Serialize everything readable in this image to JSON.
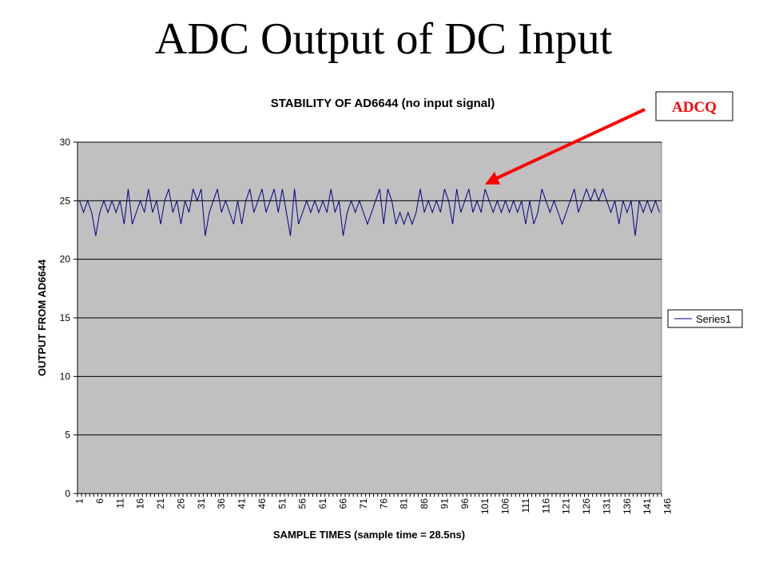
{
  "slide": {
    "title": "ADC Output of DC Input"
  },
  "callout": {
    "label": "ADCQ",
    "color": "#ff0000"
  },
  "colors": {
    "plot_background": "#c0c0c0",
    "series_line": "#000080",
    "gridline": "#000000"
  },
  "chart_data": {
    "type": "line",
    "title": "STABILITY OF AD6644 (no input signal)",
    "xlabel": "SAMPLE TIMES (sample time = 28.5ns)",
    "ylabel": "OUTPUT FROM AD6644",
    "ylim": [
      0,
      30
    ],
    "yticks": [
      0,
      5,
      10,
      15,
      20,
      25,
      30
    ],
    "xticks": [
      1,
      6,
      11,
      16,
      21,
      26,
      31,
      36,
      41,
      46,
      51,
      56,
      61,
      66,
      71,
      76,
      81,
      86,
      91,
      96,
      101,
      106,
      111,
      116,
      121,
      126,
      131,
      136,
      141,
      146
    ],
    "x_start": 1,
    "grid": "horizontal",
    "legend_position": "right",
    "series": [
      {
        "name": "Series1",
        "values": [
          25,
          24,
          25,
          24,
          22,
          24,
          25,
          24,
          25,
          24,
          25,
          23,
          26,
          23,
          24,
          25,
          24,
          26,
          24,
          25,
          23,
          25,
          26,
          24,
          25,
          23,
          25,
          24,
          26,
          25,
          26,
          22,
          24,
          25,
          26,
          24,
          25,
          24,
          23,
          25,
          23,
          25,
          26,
          24,
          25,
          26,
          24,
          25,
          26,
          24,
          26,
          24,
          22,
          26,
          23,
          24,
          25,
          24,
          25,
          24,
          25,
          24,
          26,
          24,
          25,
          22,
          24,
          25,
          24,
          25,
          24,
          23,
          24,
          25,
          26,
          23,
          26,
          25,
          23,
          24,
          23,
          24,
          23,
          24,
          26,
          24,
          25,
          24,
          25,
          24,
          26,
          25,
          23,
          26,
          24,
          25,
          26,
          24,
          25,
          24,
          26,
          25,
          24,
          25,
          24,
          25,
          24,
          25,
          24,
          25,
          23,
          25,
          23,
          24,
          26,
          25,
          24,
          25,
          24,
          23,
          24,
          25,
          26,
          24,
          25,
          26,
          25,
          26,
          25,
          26,
          25,
          24,
          25,
          23,
          25,
          24,
          25,
          22,
          25,
          24,
          25,
          24,
          25,
          24
        ]
      }
    ]
  }
}
